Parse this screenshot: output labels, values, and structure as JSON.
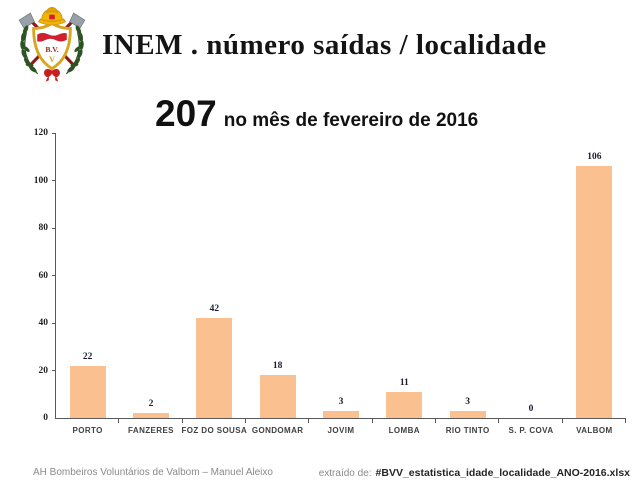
{
  "header": {
    "title": "INEM . número saídas / localidade",
    "logo": "bvv-crest"
  },
  "subtitle": {
    "big_number": "207",
    "text": "no mês de fevereiro de 2016"
  },
  "chart_data": {
    "type": "bar",
    "categories": [
      "PORTO",
      "FANZERES",
      "FOZ DO SOUSA",
      "GONDOMAR",
      "JOVIM",
      "LOMBA",
      "RIO TINTO",
      "S. P. COVA",
      "VALBOM"
    ],
    "values": [
      22,
      2,
      42,
      18,
      3,
      11,
      3,
      0,
      106
    ],
    "title": "207 no mês de fevereiro de 2016",
    "xlabel": "",
    "ylabel": "",
    "ylim": [
      0,
      120
    ],
    "ytick_step": 20,
    "grid": false,
    "legend": "none",
    "data_labels": true,
    "bar_color": "#FAC090",
    "axis_color": "#595959"
  },
  "footer": {
    "left": "AH Bombeiros Voluntários de Valbom – Manuel Aleixo",
    "right_prefix": "extraído de:",
    "right_file": "#BVV_estatistica_idade_localidade_ANO-2016.xlsx"
  }
}
